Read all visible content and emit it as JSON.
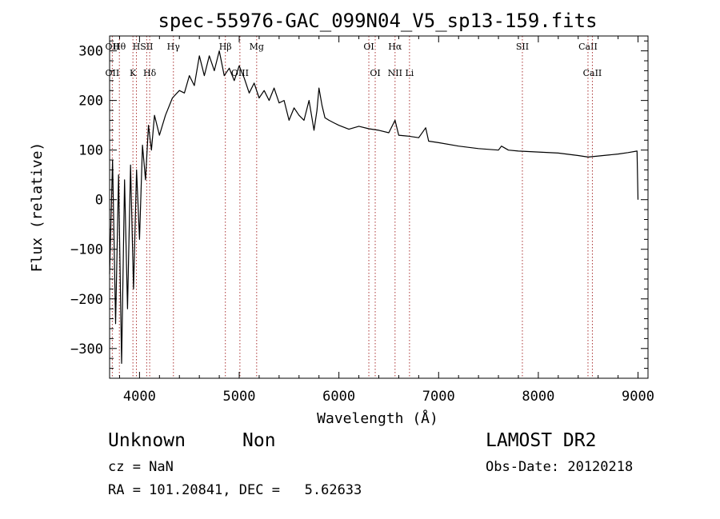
{
  "chart_data": {
    "type": "line",
    "title": "spec-55976-GAC_099N04_V5_sp13-159.fits",
    "xlabel": "Wavelength (Å)",
    "ylabel": "Flux (relative)",
    "xlim": [
      3700,
      9100
    ],
    "ylim": [
      -360,
      330
    ],
    "grid": false,
    "x_ticks": [
      4000,
      5000,
      6000,
      7000,
      8000,
      9000
    ],
    "x_tick_labels": [
      "4000",
      "5000",
      "6000",
      "7000",
      "8000",
      "9000"
    ],
    "y_ticks": [
      -300,
      -200,
      -100,
      0,
      100,
      200,
      300
    ],
    "y_tick_labels": [
      "−300",
      "−200",
      "−100",
      "0",
      "100",
      "200",
      "300"
    ],
    "series": [
      {
        "x": [
          3700,
          3730,
          3760,
          3790,
          3820,
          3850,
          3880,
          3910,
          3940,
          3970,
          4000,
          4030,
          4060,
          4090,
          4120,
          4150,
          4200,
          4260,
          4330,
          4400,
          4450,
          4500,
          4550,
          4600,
          4650,
          4700,
          4750,
          4800,
          4850,
          4900,
          4950,
          5000,
          5050,
          5100,
          5150,
          5200,
          5250,
          5300,
          5350,
          5400,
          5450,
          5500,
          5550,
          5600,
          5650,
          5700,
          5750,
          5780,
          5800,
          5830,
          5860,
          5900,
          5950,
          6000,
          6100,
          6200,
          6300,
          6400,
          6500,
          6563,
          6600,
          6700,
          6800,
          6870,
          6900,
          7000,
          7200,
          7400,
          7600,
          7630,
          7700,
          7800,
          8000,
          8200,
          8400,
          8500,
          8600,
          8700,
          8800,
          8900,
          8990,
          9000
        ],
        "y": [
          -150,
          80,
          -250,
          50,
          -330,
          40,
          -220,
          70,
          -180,
          60,
          -80,
          110,
          40,
          150,
          100,
          170,
          130,
          170,
          205,
          220,
          215,
          250,
          230,
          290,
          250,
          290,
          260,
          300,
          250,
          265,
          240,
          270,
          245,
          215,
          235,
          205,
          220,
          200,
          225,
          195,
          200,
          160,
          185,
          170,
          160,
          200,
          140,
          180,
          225,
          190,
          165,
          160,
          155,
          150,
          142,
          148,
          143,
          140,
          135,
          160,
          130,
          128,
          125,
          145,
          118,
          115,
          108,
          103,
          100,
          108,
          100,
          98,
          96,
          94,
          89,
          86,
          88,
          90,
          92,
          95,
          98,
          0
        ]
      }
    ],
    "line_markers": [
      {
        "x": 3727,
        "top": "OII",
        "bottom": "OII"
      },
      {
        "x": 3798,
        "top": "Hθ",
        "bottom": ""
      },
      {
        "x": 3934,
        "top": "",
        "bottom": "K"
      },
      {
        "x": 3969,
        "top": "H",
        "bottom": ""
      },
      {
        "x": 4072,
        "top": "SII",
        "bottom": ""
      },
      {
        "x": 4102,
        "top": "",
        "bottom": "Hδ"
      },
      {
        "x": 4340,
        "top": "Hγ",
        "bottom": ""
      },
      {
        "x": 4861,
        "top": "Hβ",
        "bottom": ""
      },
      {
        "x": 5007,
        "top": "",
        "bottom": "OIII"
      },
      {
        "x": 5175,
        "top": "Mg",
        "bottom": ""
      },
      {
        "x": 6300,
        "top": "OI",
        "bottom": ""
      },
      {
        "x": 6364,
        "top": "",
        "bottom": "OI"
      },
      {
        "x": 6563,
        "top": "Hα",
        "bottom": "NII"
      },
      {
        "x": 6708,
        "top": "",
        "bottom": "Li"
      },
      {
        "x": 7840,
        "top": "SII",
        "bottom": ""
      },
      {
        "x": 8498,
        "top": "CaII",
        "bottom": ""
      },
      {
        "x": 8542,
        "top": "",
        "bottom": "CaII"
      }
    ]
  },
  "info": {
    "class_label": "Unknown",
    "subclass_label": "Non",
    "survey_label": "LAMOST DR2",
    "cz_text": "cz = NaN",
    "obs_date_text": "Obs-Date: 20120218",
    "coords_text": "RA = 101.20841, DEC =   5.62633"
  }
}
